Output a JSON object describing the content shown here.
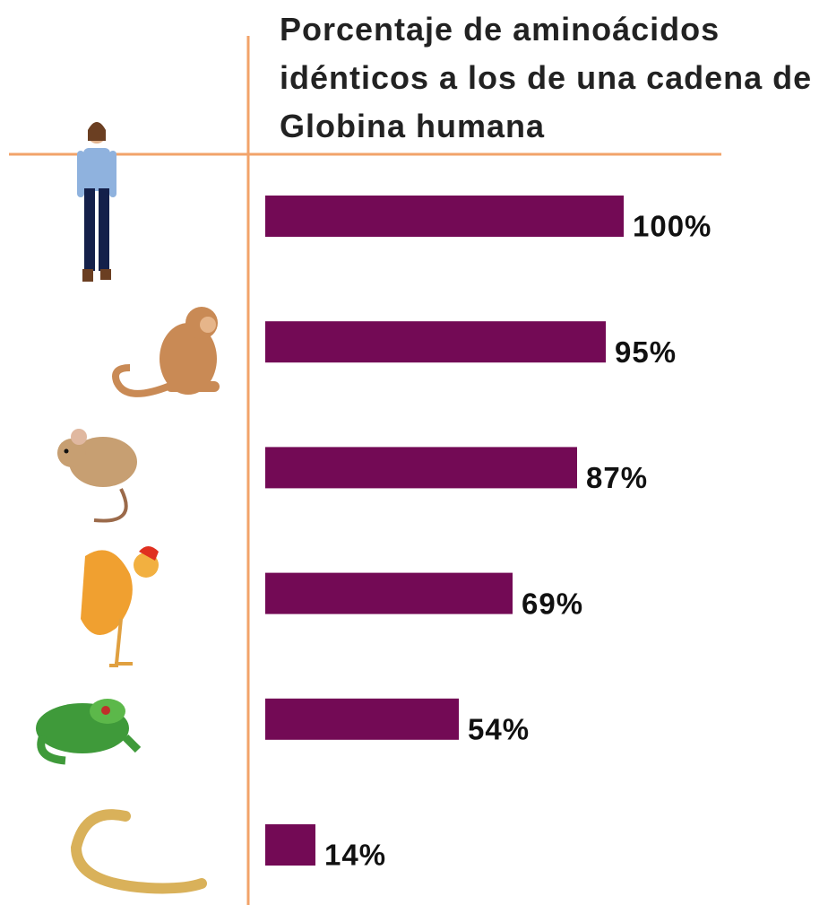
{
  "chart_data": {
    "type": "bar",
    "orientation": "horizontal",
    "title": "Porcentaje de aminoácidos idénticos a los de una cadena de Globina humana",
    "categories": [
      null,
      null,
      null,
      null,
      null,
      null
    ],
    "values": [
      100,
      95,
      87,
      69,
      54,
      14
    ],
    "value_labels": [
      "100%",
      "95%",
      "87%",
      "69%",
      "54%",
      "14%"
    ],
    "color": "#730a55"
  }
}
